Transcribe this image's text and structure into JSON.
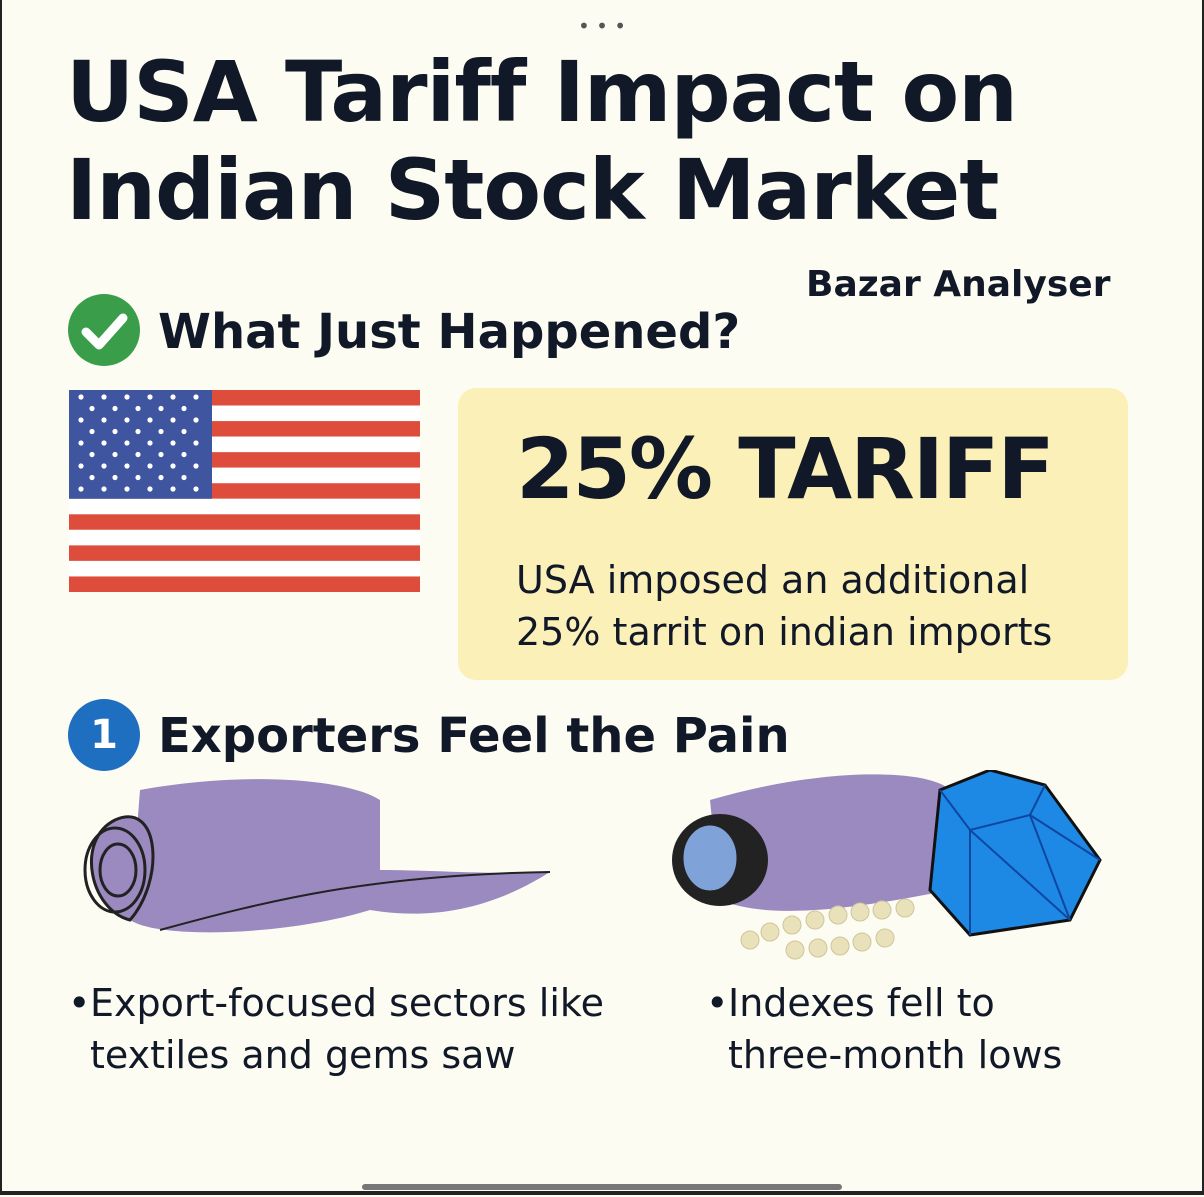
{
  "header": {
    "title_lines": [
      "USA Tariff Impact on",
      "Indian Stock Market"
    ],
    "brand": "Bazar Analyser"
  },
  "section1": {
    "heading": "What Just Happened?",
    "headline": "25% TARIFF",
    "description_lines": [
      "USA imposed an additional",
      "25% tarrit on indian imports"
    ]
  },
  "section2": {
    "number": "1",
    "heading": "Exporters Feel the Pain",
    "bullets": [
      {
        "lines": [
          "Export-focused sectors like",
          "textiles and gems saw"
        ]
      },
      {
        "lines": [
          "Indexes fell to",
          "three-month lows"
        ]
      }
    ]
  }
}
